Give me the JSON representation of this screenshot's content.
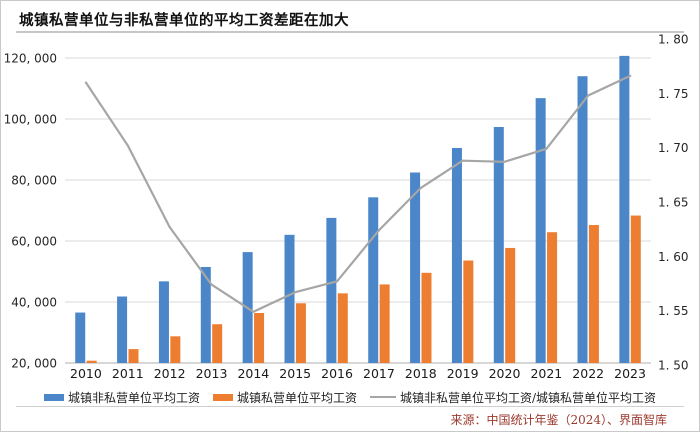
{
  "title": "城镇私营单位与非私营单位的平均工资差距在加大",
  "source": "来源：中国统计年鉴（2024）、界面智库",
  "legend": {
    "non_private": "城镇非私营单位平均工资",
    "private": "城镇私营单位平均工资",
    "ratio": "城镇非私营单位平均工资/城镇私营单位平均工资"
  },
  "colors": {
    "non_private": "#4A86C8",
    "private": "#ED7D31",
    "ratio_line": "#A6A6A6",
    "gridline": "#D9D9D9",
    "axis_line": "#BFBFBF",
    "tick_text": "#262626",
    "source_text": "#9C3A2E"
  },
  "chart_data": {
    "type": "bar",
    "title": "城镇私营单位与非私营单位的平均工资差距在加大",
    "categories": [
      "2010",
      "2011",
      "2012",
      "2013",
      "2014",
      "2015",
      "2016",
      "2017",
      "2018",
      "2019",
      "2020",
      "2021",
      "2022",
      "2023"
    ],
    "series": [
      {
        "name": "城镇非私营单位平均工资",
        "type": "bar",
        "color_key": "non_private",
        "axis": "left",
        "values": [
          36539,
          41799,
          46769,
          51483,
          56360,
          62029,
          67569,
          74318,
          82461,
          90501,
          97379,
          106837,
          114029,
          120698
        ]
      },
      {
        "name": "城镇私营单位平均工资",
        "type": "bar",
        "color_key": "private",
        "axis": "left",
        "values": [
          20759,
          24556,
          28752,
          32706,
          36390,
          39589,
          42833,
          45761,
          49575,
          53604,
          57727,
          62884,
          65237,
          68340
        ]
      },
      {
        "name": "城镇非私营单位平均工资/城镇私营单位平均工资",
        "type": "line",
        "color_key": "ratio_line",
        "axis": "right",
        "values": [
          1.76,
          1.702,
          1.627,
          1.574,
          1.549,
          1.567,
          1.577,
          1.624,
          1.663,
          1.688,
          1.687,
          1.699,
          1.748,
          1.766
        ]
      }
    ],
    "left_axis": {
      "min": 20000,
      "max": 120000,
      "step": 20000,
      "tick_labels": [
        "20, 000",
        "40, 000",
        "60, 000",
        "80, 000",
        "100, 000",
        "120, 000"
      ]
    },
    "right_axis": {
      "min": 1.5,
      "max": 1.8,
      "step": 0.05,
      "tick_labels": [
        "1. 50",
        "1. 55",
        "1. 60",
        "1. 65",
        "1. 70",
        "1. 75",
        "1. 80"
      ]
    },
    "grid": true,
    "legend_position": "bottom"
  }
}
